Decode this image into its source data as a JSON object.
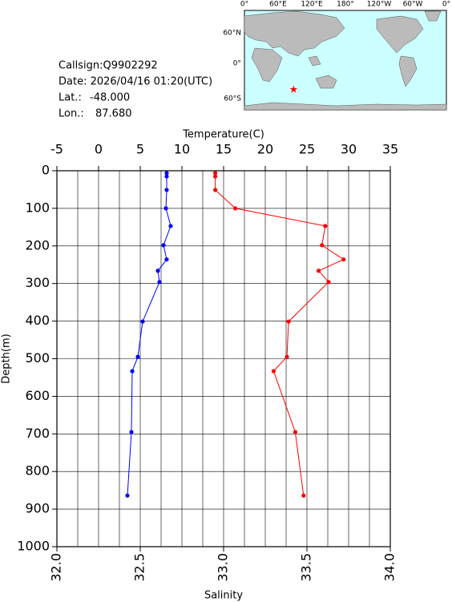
{
  "info": {
    "callsign": "Callsign:Q9902292",
    "date": "Date:  2026/04/16 01:20(UTC)",
    "lat_label": "Lat.:",
    "lat": "-48.000",
    "lon_label": "Lon.:",
    "lon": "87.680"
  },
  "map": {
    "lon_labels": [
      "0°",
      "60°E",
      "120°E",
      "180°",
      "120°W",
      "60°W",
      "0°"
    ],
    "lat_labels": [
      "60°N",
      "0°",
      "60°S"
    ],
    "marker_color": "#ff0000"
  },
  "chart_data": {
    "type": "profile",
    "xlabel": "Temperature(C)",
    "ylabel": "Depth(m)",
    "x2label": "Salinity",
    "xlim": [
      -5,
      35
    ],
    "xticks": [
      -5,
      0,
      5,
      10,
      15,
      20,
      25,
      30,
      35
    ],
    "x2lim": [
      32,
      34
    ],
    "x2ticks": [
      {
        "value": 32,
        "label": "32.0"
      },
      32.5,
      {
        "value": 33,
        "label": "33.0"
      },
      33.5,
      {
        "value": 34,
        "label": "34.0"
      }
    ],
    "ylim": [
      0,
      1000
    ],
    "yticks": [
      0,
      100,
      200,
      300,
      400,
      500,
      600,
      700,
      800,
      900,
      1000
    ],
    "y_inverted": true,
    "grid": true,
    "depth": [
      6,
      15,
      51,
      100,
      147,
      198,
      236,
      266,
      296,
      401,
      495,
      533,
      695,
      864
    ],
    "series": [
      {
        "color": "#0000ff",
        "axis": "x",
        "values": [
          8.17,
          8.17,
          8.17,
          8.08,
          8.65,
          7.79,
          8.17,
          7.12,
          7.31,
          5.29,
          4.71,
          4.04,
          3.94,
          3.46
        ]
      },
      {
        "color": "#ff0000",
        "axis": "x2",
        "values": [
          32.95,
          32.95,
          32.95,
          33.07,
          33.61,
          33.59,
          33.72,
          33.57,
          33.63,
          33.39,
          33.38,
          33.3,
          33.43,
          33.48
        ]
      }
    ]
  }
}
